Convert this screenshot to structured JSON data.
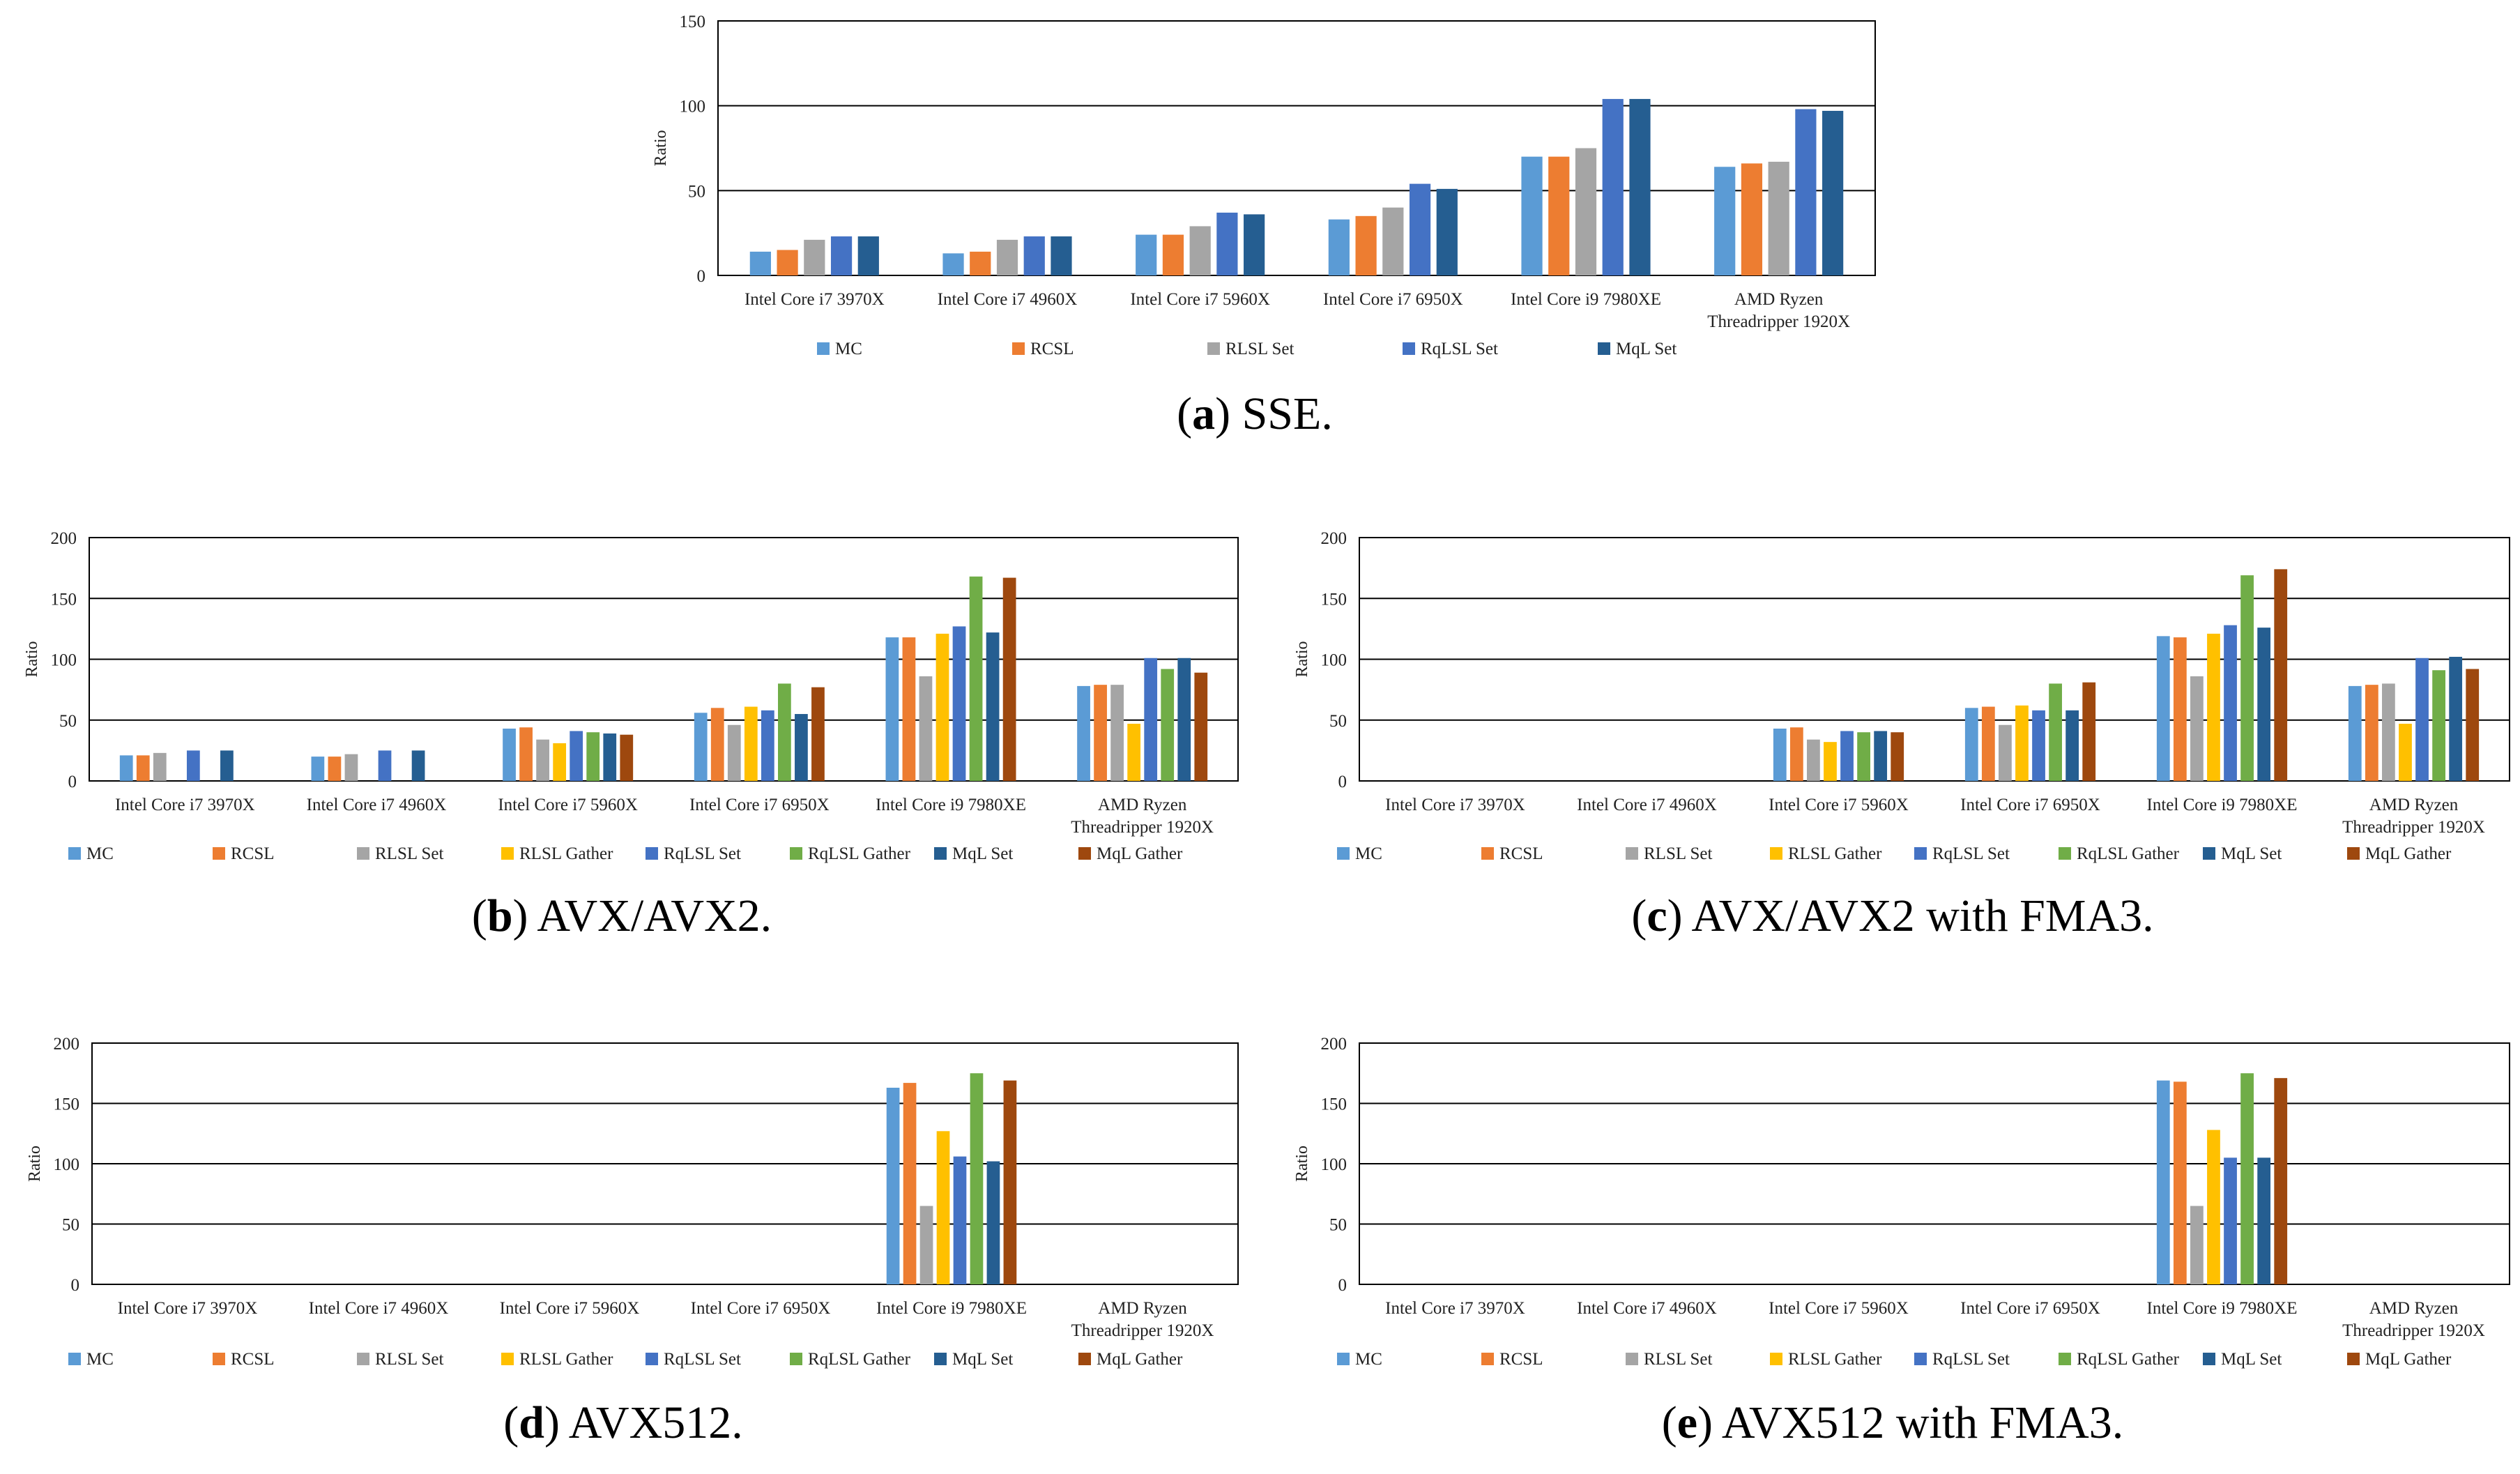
{
  "colors": {
    "MC": "#5B9BD5",
    "RCSL": "#ED7D31",
    "RLSL Set": "#A5A5A5",
    "RLSL Gather": "#FFC000",
    "RqLSL Set": "#4472C4",
    "RqLSL Gather": "#70AD47",
    "MqL Set": "#255E91",
    "MqL Gather": "#9E480E"
  },
  "chart_data": [
    {
      "id": "a",
      "type": "bar",
      "caption_letter": "a",
      "caption_text": " SSE.",
      "ylabel": "Ratio",
      "ylim": [
        0,
        150
      ],
      "yticks": [
        0,
        50,
        100,
        150
      ],
      "categories": [
        "Intel Core i7 3970X",
        "Intel Core i7 4960X",
        "Intel Core i7 5960X",
        "Intel Core i7 6950X",
        "Intel Core i9 7980XE",
        "AMD Ryzen|Threadripper 1920X"
      ],
      "series": [
        {
          "name": "MC",
          "values": [
            14,
            13,
            24,
            33,
            70,
            64
          ]
        },
        {
          "name": "RCSL",
          "values": [
            15,
            14,
            24,
            35,
            70,
            66
          ]
        },
        {
          "name": "RLSL Set",
          "values": [
            21,
            21,
            29,
            40,
            75,
            67
          ]
        },
        {
          "name": "RqLSL Set",
          "values": [
            23,
            23,
            37,
            54,
            104,
            98
          ]
        },
        {
          "name": "MqL Set",
          "values": [
            23,
            23,
            36,
            51,
            104,
            97
          ]
        }
      ],
      "grid": true,
      "legend_position": "bottom"
    },
    {
      "id": "b",
      "type": "bar",
      "caption_letter": "b",
      "caption_text": " AVX/AVX2.",
      "ylabel": "Ratio",
      "ylim": [
        0,
        200
      ],
      "yticks": [
        0,
        50,
        100,
        150,
        200
      ],
      "categories": [
        "Intel Core i7 3970X",
        "Intel Core i7 4960X",
        "Intel Core i7 5960X",
        "Intel Core i7 6950X",
        "Intel Core i9 7980XE",
        "AMD Ryzen|Threadripper 1920X"
      ],
      "series": [
        {
          "name": "MC",
          "values": [
            21,
            20,
            43,
            56,
            118,
            78
          ]
        },
        {
          "name": "RCSL",
          "values": [
            21,
            20,
            44,
            60,
            118,
            79
          ]
        },
        {
          "name": "RLSL Set",
          "values": [
            23,
            22,
            34,
            46,
            86,
            79
          ]
        },
        {
          "name": "RLSL Gather",
          "values": [
            0,
            0,
            31,
            61,
            121,
            47
          ]
        },
        {
          "name": "RqLSL Set",
          "values": [
            25,
            25,
            41,
            58,
            127,
            101
          ]
        },
        {
          "name": "RqLSL Gather",
          "values": [
            0,
            0,
            40,
            80,
            168,
            92
          ]
        },
        {
          "name": "MqL Set",
          "values": [
            25,
            25,
            39,
            55,
            122,
            101
          ]
        },
        {
          "name": "MqL Gather",
          "values": [
            0,
            0,
            38,
            77,
            167,
            89
          ]
        }
      ],
      "grid": true,
      "legend_position": "bottom"
    },
    {
      "id": "c",
      "type": "bar",
      "caption_letter": "c",
      "caption_text": " AVX/AVX2 with FMA3.",
      "ylabel": "Ratio",
      "ylim": [
        0,
        200
      ],
      "yticks": [
        0,
        50,
        100,
        150,
        200
      ],
      "categories": [
        "Intel Core i7 3970X",
        "Intel Core i7 4960X",
        "Intel Core i7 5960X",
        "Intel Core i7 6950X",
        "Intel Core i9 7980XE",
        "AMD Ryzen|Threadripper 1920X"
      ],
      "series": [
        {
          "name": "MC",
          "values": [
            0,
            0,
            43,
            60,
            119,
            78
          ]
        },
        {
          "name": "RCSL",
          "values": [
            0,
            0,
            44,
            61,
            118,
            79
          ]
        },
        {
          "name": "RLSL Set",
          "values": [
            0,
            0,
            34,
            46,
            86,
            80
          ]
        },
        {
          "name": "RLSL Gather",
          "values": [
            0,
            0,
            32,
            62,
            121,
            47
          ]
        },
        {
          "name": "RqLSL Set",
          "values": [
            0,
            0,
            41,
            58,
            128,
            101
          ]
        },
        {
          "name": "RqLSL Gather",
          "values": [
            0,
            0,
            40,
            80,
            169,
            91
          ]
        },
        {
          "name": "MqL Set",
          "values": [
            0,
            0,
            41,
            58,
            126,
            102
          ]
        },
        {
          "name": "MqL Gather",
          "values": [
            0,
            0,
            40,
            81,
            174,
            92
          ]
        }
      ],
      "grid": true,
      "legend_position": "bottom"
    },
    {
      "id": "d",
      "type": "bar",
      "caption_letter": "d",
      "caption_text": " AVX512.",
      "ylabel": "Ratio",
      "ylim": [
        0,
        200
      ],
      "yticks": [
        0,
        50,
        100,
        150,
        200
      ],
      "categories": [
        "Intel Core i7 3970X",
        "Intel Core i7 4960X",
        "Intel Core i7 5960X",
        "Intel Core i7 6950X",
        "Intel Core i9 7980XE",
        "AMD Ryzen|Threadripper 1920X"
      ],
      "series": [
        {
          "name": "MC",
          "values": [
            0,
            0,
            0,
            0,
            163,
            0
          ]
        },
        {
          "name": "RCSL",
          "values": [
            0,
            0,
            0,
            0,
            167,
            0
          ]
        },
        {
          "name": "RLSL Set",
          "values": [
            0,
            0,
            0,
            0,
            65,
            0
          ]
        },
        {
          "name": "RLSL Gather",
          "values": [
            0,
            0,
            0,
            0,
            127,
            0
          ]
        },
        {
          "name": "RqLSL Set",
          "values": [
            0,
            0,
            0,
            0,
            106,
            0
          ]
        },
        {
          "name": "RqLSL Gather",
          "values": [
            0,
            0,
            0,
            0,
            175,
            0
          ]
        },
        {
          "name": "MqL Set",
          "values": [
            0,
            0,
            0,
            0,
            102,
            0
          ]
        },
        {
          "name": "MqL Gather",
          "values": [
            0,
            0,
            0,
            0,
            169,
            0
          ]
        }
      ],
      "grid": true,
      "legend_position": "bottom"
    },
    {
      "id": "e",
      "type": "bar",
      "caption_letter": "e",
      "caption_text": " AVX512 with FMA3.",
      "ylabel": "Ratio",
      "ylim": [
        0,
        200
      ],
      "yticks": [
        0,
        50,
        100,
        150,
        200
      ],
      "categories": [
        "Intel Core i7 3970X",
        "Intel Core i7 4960X",
        "Intel Core i7 5960X",
        "Intel Core i7 6950X",
        "Intel Core i9 7980XE",
        "AMD Ryzen|Threadripper 1920X"
      ],
      "series": [
        {
          "name": "MC",
          "values": [
            0,
            0,
            0,
            0,
            169,
            0
          ]
        },
        {
          "name": "RCSL",
          "values": [
            0,
            0,
            0,
            0,
            168,
            0
          ]
        },
        {
          "name": "RLSL Set",
          "values": [
            0,
            0,
            0,
            0,
            65,
            0
          ]
        },
        {
          "name": "RLSL Gather",
          "values": [
            0,
            0,
            0,
            0,
            128,
            0
          ]
        },
        {
          "name": "RqLSL Set",
          "values": [
            0,
            0,
            0,
            0,
            105,
            0
          ]
        },
        {
          "name": "RqLSL Gather",
          "values": [
            0,
            0,
            0,
            0,
            175,
            0
          ]
        },
        {
          "name": "MqL Set",
          "values": [
            0,
            0,
            0,
            0,
            105,
            0
          ]
        },
        {
          "name": "MqL Gather",
          "values": [
            0,
            0,
            0,
            0,
            171,
            0
          ]
        }
      ],
      "grid": true,
      "legend_position": "bottom"
    }
  ]
}
